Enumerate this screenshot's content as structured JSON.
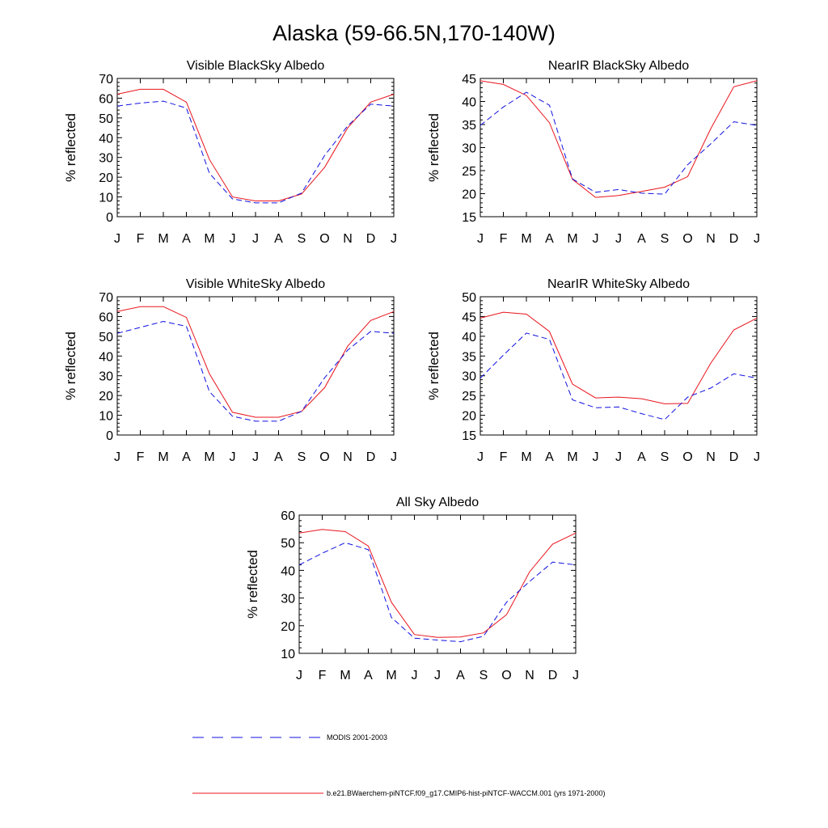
{
  "title": "Alaska (59-66.5N,170-140W)",
  "colors": {
    "model": "#e8141c",
    "modis": "#1010e0",
    "axis": "#000000"
  },
  "legend": [
    {
      "label": "MODIS 2001-2003",
      "series": "modis",
      "style": "dashed"
    },
    {
      "label": "b.e21.BWaerchem-piNTCF.f09_g17.CMIP6-hist-piNTCF-WACCM.001 (yrs 1971-2000)",
      "series": "model",
      "style": "solid"
    }
  ],
  "chart_data": [
    {
      "type": "line",
      "title": "Visible BlackSky Albedo",
      "ylabel": "% reflected",
      "categories": [
        "J",
        "F",
        "M",
        "A",
        "M",
        "J",
        "J",
        "A",
        "S",
        "O",
        "N",
        "D",
        "J"
      ],
      "ylim": [
        0,
        70
      ],
      "yticks": [
        0,
        10,
        20,
        30,
        40,
        50,
        60,
        70
      ],
      "series": [
        {
          "name": "b.e21.BWaerchem-piNTCF.f09_g17.CMIP6-hist-piNTCF-WACCM.001 (yrs 1971-2000)",
          "key": "model",
          "values": [
            62,
            64.5,
            64.5,
            58,
            29,
            10,
            8,
            8,
            11.5,
            25,
            45,
            58,
            62
          ]
        },
        {
          "name": "MODIS 2001-2003",
          "key": "modis",
          "values": [
            56,
            57.5,
            58.5,
            55,
            22,
            9,
            7,
            7,
            12,
            31,
            46,
            57,
            56
          ]
        }
      ]
    },
    {
      "type": "line",
      "title": "NearIR BlackSky Albedo",
      "ylabel": "% reflected",
      "categories": [
        "J",
        "F",
        "M",
        "A",
        "M",
        "J",
        "J",
        "A",
        "S",
        "O",
        "N",
        "D",
        "J"
      ],
      "ylim": [
        15,
        45
      ],
      "yticks": [
        15,
        20,
        25,
        30,
        35,
        40,
        45
      ],
      "series": [
        {
          "name": "b.e21.BWaerchem-piNTCF.f09_g17.CMIP6-hist-piNTCF-WACCM.001 (yrs 1971-2000)",
          "key": "model",
          "values": [
            44.5,
            43.7,
            41.3,
            35.4,
            23.1,
            19.2,
            19.6,
            20.5,
            21.4,
            23.7,
            34.1,
            43.2,
            44.5
          ]
        },
        {
          "name": "MODIS 2001-2003",
          "key": "modis",
          "values": [
            34.8,
            38.8,
            42,
            39.2,
            23.2,
            20.3,
            20.9,
            20.1,
            19.9,
            26.3,
            30.8,
            35.6,
            34.8
          ]
        }
      ]
    },
    {
      "type": "line",
      "title": "Visible WhiteSky Albedo",
      "ylabel": "% reflected",
      "categories": [
        "J",
        "F",
        "M",
        "A",
        "M",
        "J",
        "J",
        "A",
        "S",
        "O",
        "N",
        "D",
        "J"
      ],
      "ylim": [
        0,
        70
      ],
      "yticks": [
        0,
        10,
        20,
        30,
        40,
        50,
        60,
        70
      ],
      "series": [
        {
          "name": "b.e21.BWaerchem-piNTCF.f09_g17.CMIP6-hist-piNTCF-WACCM.001 (yrs 1971-2000)",
          "key": "model",
          "values": [
            62.5,
            65,
            65,
            59.5,
            31,
            11.5,
            9,
            9,
            12,
            24,
            45,
            58,
            62.5
          ]
        },
        {
          "name": "MODIS 2001-2003",
          "key": "modis",
          "values": [
            51.5,
            54.5,
            57.5,
            55,
            22,
            9.5,
            7,
            7,
            12,
            29,
            43,
            52.5,
            51.5
          ]
        }
      ]
    },
    {
      "type": "line",
      "title": "NearIR WhiteSky Albedo",
      "ylabel": "% reflected",
      "categories": [
        "J",
        "F",
        "M",
        "A",
        "M",
        "J",
        "J",
        "A",
        "S",
        "O",
        "N",
        "D",
        "J"
      ],
      "ylim": [
        15,
        50
      ],
      "yticks": [
        15,
        20,
        25,
        30,
        35,
        40,
        45,
        50
      ],
      "series": [
        {
          "name": "b.e21.BWaerchem-piNTCF.f09_g17.CMIP6-hist-piNTCF-WACCM.001 (yrs 1971-2000)",
          "key": "model",
          "values": [
            44.6,
            46.1,
            45.6,
            41.2,
            27.9,
            24.4,
            24.6,
            24.2,
            22.9,
            23,
            33.2,
            41.6,
            44.6
          ]
        },
        {
          "name": "MODIS 2001-2003",
          "key": "modis",
          "values": [
            29.4,
            35.2,
            40.8,
            39.2,
            23.9,
            21.9,
            22.1,
            20.4,
            18.9,
            24.6,
            26.9,
            30.5,
            29.4
          ]
        }
      ]
    },
    {
      "type": "line",
      "title": "All Sky Albedo",
      "ylabel": "% reflected",
      "categories": [
        "J",
        "F",
        "M",
        "A",
        "M",
        "J",
        "J",
        "A",
        "S",
        "O",
        "N",
        "D",
        "J"
      ],
      "ylim": [
        10,
        60
      ],
      "yticks": [
        10,
        20,
        30,
        40,
        50,
        60
      ],
      "series": [
        {
          "name": "b.e21.BWaerchem-piNTCF.f09_g17.CMIP6-hist-piNTCF-WACCM.001 (yrs 1971-2000)",
          "key": "model",
          "values": [
            53.5,
            54.8,
            54,
            48.8,
            28.5,
            16.8,
            15.8,
            15.9,
            17.4,
            24,
            39.5,
            49.5,
            53.5
          ]
        },
        {
          "name": "MODIS 2001-2003",
          "key": "modis",
          "values": [
            42,
            46.2,
            50,
            47.5,
            23,
            15.5,
            14.8,
            14.2,
            16.2,
            28.5,
            36,
            43,
            42
          ]
        }
      ]
    }
  ]
}
